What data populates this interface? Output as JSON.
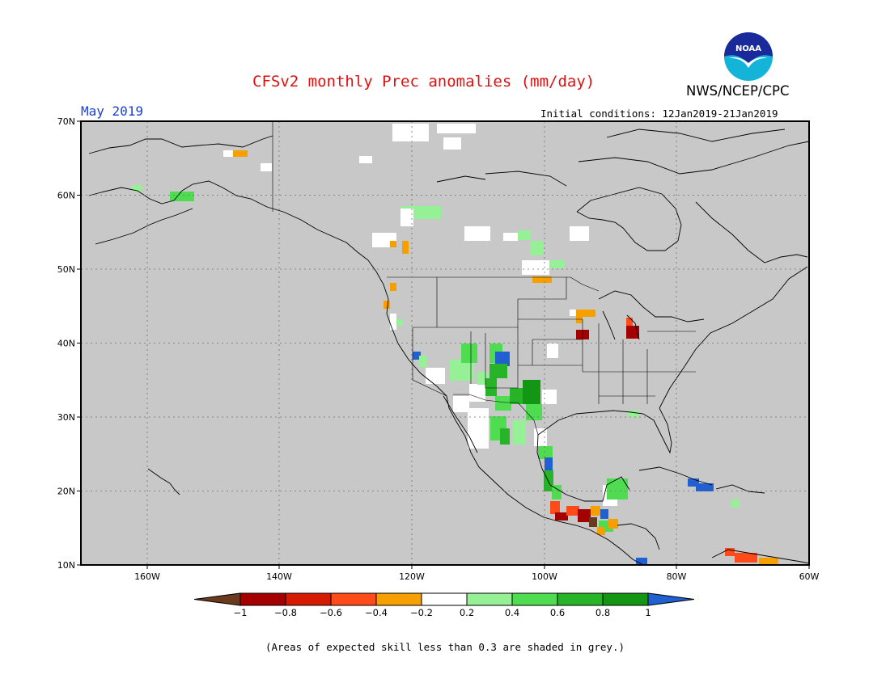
{
  "header": {
    "title": "CFSv2 monthly Prec anomalies (mm/day)",
    "month": "May 2019",
    "initial_conditions": "Initial conditions: 12Jan2019-21Jan2019",
    "organization": "NWS/NCEP/CPC",
    "logo_text": "NOAA"
  },
  "map": {
    "lon_range": [
      -170,
      -60
    ],
    "lat_range": [
      10,
      70
    ],
    "lat_labels": [
      "70N",
      "60N",
      "50N",
      "40N",
      "30N",
      "20N",
      "10N"
    ],
    "lon_labels": [
      "160W",
      "140W",
      "120W",
      "100W",
      "80W",
      "60W"
    ],
    "background_color": "#c8c8c8"
  },
  "colorbar": {
    "labels": [
      "−1",
      "−0.8",
      "−0.6",
      "−0.4",
      "−0.2",
      "0.2",
      "0.4",
      "0.6",
      "0.8",
      "1"
    ],
    "colors": {
      "below_min": "#6b3a1e",
      "bins": [
        "#a50000",
        "#d61a00",
        "#ff4a1a",
        "#f5a000",
        "#ffffff",
        "#96f096",
        "#50dc50",
        "#28b428",
        "#139613"
      ],
      "above_max": "#2060d0"
    }
  },
  "footer": {
    "note": "(Areas of expected skill less than 0.3 are shaded in grey.)"
  }
}
